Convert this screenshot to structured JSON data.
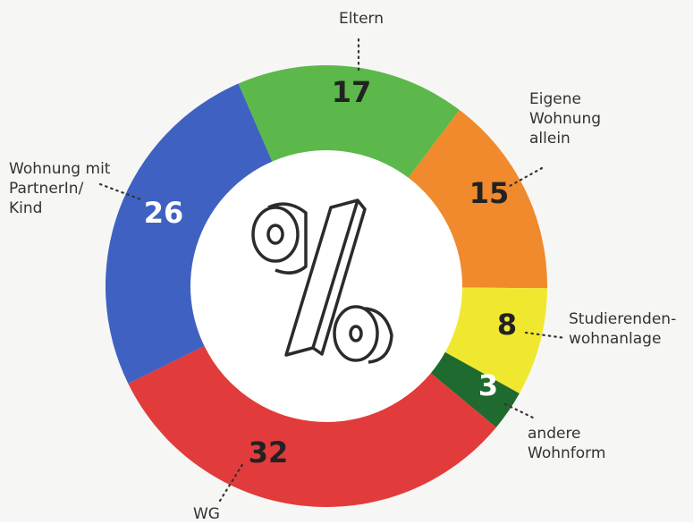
{
  "chart_data": {
    "type": "donut",
    "categories": [
      "Eltern",
      "Eigene\nWohnung\nallein",
      "Studierenden-\nwohnanlage",
      "andere\nWohnform",
      "WG",
      "Wohnung mit\nPartnerIn/\nKind"
    ],
    "values": [
      17,
      15,
      8,
      3,
      32,
      26
    ],
    "colors": [
      "#5cb84a",
      "#f08a2c",
      "#f0e82e",
      "#1f6a2e",
      "#e23b3b",
      "#3f62c2"
    ]
  }
}
